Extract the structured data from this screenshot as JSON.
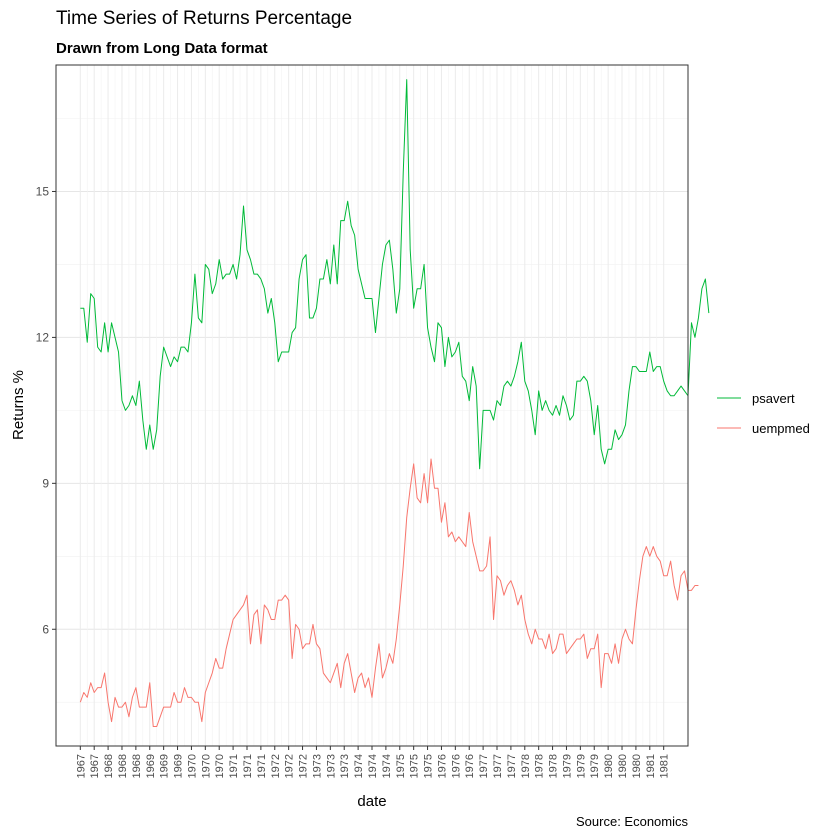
{
  "chart_data": {
    "type": "line",
    "title": "Time Series of Returns Percentage",
    "subtitle": "Drawn from Long Data format",
    "caption": "Source: Economics",
    "xlabel": "date",
    "ylabel": "Returns %",
    "ylim": [
      3.6,
      17.6
    ],
    "yticks": [
      6,
      9,
      12,
      15
    ],
    "x_tick_labels": [
      "1967",
      "1967",
      "1968",
      "1968",
      "1968",
      "1969",
      "1969",
      "1969",
      "1970",
      "1970",
      "1970",
      "1971",
      "1971",
      "1971",
      "1972",
      "1972",
      "1972",
      "1973",
      "1973",
      "1973",
      "1974",
      "1974",
      "1974",
      "1975",
      "1975",
      "1975",
      "1976",
      "1976",
      "1976",
      "1977",
      "1977",
      "1977",
      "1978",
      "1978",
      "1978",
      "1979",
      "1979",
      "1979",
      "1980",
      "1980",
      "1980",
      "1981",
      "1981"
    ],
    "x_tick_dates": [
      "1967-07",
      "1967-11",
      "1968-03",
      "1968-07",
      "1968-11",
      "1969-03",
      "1969-07",
      "1969-11",
      "1970-03",
      "1970-07",
      "1970-11",
      "1971-03",
      "1971-07",
      "1971-11",
      "1972-03",
      "1972-07",
      "1972-11",
      "1973-03",
      "1973-07",
      "1973-11",
      "1974-03",
      "1974-07",
      "1974-11",
      "1975-03",
      "1975-07",
      "1975-11",
      "1976-03",
      "1976-07",
      "1976-11",
      "1977-03",
      "1977-07",
      "1977-11",
      "1978-03",
      "1978-07",
      "1978-11",
      "1979-03",
      "1979-07",
      "1979-11",
      "1980-03",
      "1980-07",
      "1980-11",
      "1981-03",
      "1981-07"
    ],
    "x_range": [
      "1966-12",
      "1982-02"
    ],
    "grid": true,
    "legend": "right",
    "start_date": "1967-07",
    "series": [
      {
        "name": "psavert",
        "color": "#00BA38",
        "values": [
          12.6,
          12.6,
          11.9,
          12.9,
          12.8,
          11.8,
          11.7,
          12.3,
          11.7,
          12.3,
          12.0,
          11.7,
          10.7,
          10.5,
          10.6,
          10.8,
          10.6,
          11.1,
          10.3,
          9.7,
          10.2,
          9.7,
          10.1,
          11.2,
          11.8,
          11.6,
          11.4,
          11.6,
          11.5,
          11.8,
          11.8,
          11.7,
          12.3,
          13.3,
          12.4,
          12.3,
          13.5,
          13.4,
          12.9,
          13.1,
          13.6,
          13.2,
          13.3,
          13.3,
          13.5,
          13.2,
          13.7,
          14.7,
          13.8,
          13.6,
          13.3,
          13.3,
          13.2,
          13.0,
          12.5,
          12.8,
          12.3,
          11.5,
          11.7,
          11.7,
          11.7,
          12.1,
          12.2,
          13.2,
          13.6,
          13.7,
          12.4,
          12.4,
          12.6,
          13.2,
          13.2,
          13.6,
          13.1,
          13.9,
          13.1,
          14.4,
          14.4,
          14.8,
          14.3,
          14.1,
          13.4,
          13.1,
          12.8,
          12.8,
          12.8,
          12.1,
          12.8,
          13.5,
          13.9,
          14.0,
          13.4,
          12.5,
          13.0,
          15.4,
          17.3,
          13.8,
          12.6,
          13.0,
          13.0,
          13.5,
          12.2,
          11.8,
          11.5,
          12.3,
          12.2,
          11.4,
          12.0,
          11.6,
          11.7,
          11.9,
          11.2,
          11.1,
          10.7,
          11.4,
          11.0,
          9.3,
          10.5,
          10.5,
          10.5,
          10.3,
          10.7,
          10.6,
          11.0,
          11.1,
          11.0,
          11.2,
          11.5,
          11.9,
          11.1,
          10.9,
          10.5,
          10.0,
          10.9,
          10.5,
          10.7,
          10.5,
          10.4,
          10.6,
          10.4,
          10.8,
          10.6,
          10.3,
          10.4,
          11.1,
          11.1,
          11.2,
          11.1,
          10.7,
          10.0,
          10.6,
          9.7,
          9.4,
          9.7,
          9.7,
          10.1,
          9.9,
          10.0,
          10.2,
          10.9,
          11.4,
          11.4,
          11.3,
          11.3,
          11.3,
          11.7,
          11.3,
          11.4,
          11.4,
          11.1,
          10.9,
          10.8,
          10.8,
          10.9,
          11.0,
          10.9,
          10.8,
          12.3,
          12.0,
          12.4,
          13.0,
          13.2,
          12.5
        ]
      },
      {
        "name": "uempmed",
        "color": "#F8766D",
        "values": [
          4.5,
          4.7,
          4.6,
          4.9,
          4.7,
          4.8,
          4.8,
          5.1,
          4.5,
          4.1,
          4.6,
          4.4,
          4.4,
          4.5,
          4.2,
          4.6,
          4.8,
          4.4,
          4.4,
          4.4,
          4.9,
          4.0,
          4.0,
          4.2,
          4.4,
          4.4,
          4.4,
          4.7,
          4.5,
          4.5,
          4.8,
          4.6,
          4.6,
          4.5,
          4.5,
          4.1,
          4.7,
          4.9,
          5.1,
          5.4,
          5.2,
          5.2,
          5.6,
          5.9,
          6.2,
          6.3,
          6.4,
          6.5,
          6.7,
          5.7,
          6.3,
          6.4,
          5.7,
          6.5,
          6.4,
          6.2,
          6.2,
          6.6,
          6.6,
          6.7,
          6.6,
          5.4,
          6.1,
          6.0,
          5.6,
          5.7,
          5.7,
          6.1,
          5.7,
          5.6,
          5.1,
          5.0,
          4.9,
          5.1,
          5.3,
          4.8,
          5.3,
          5.5,
          5.1,
          4.7,
          5.0,
          5.1,
          4.8,
          5.0,
          4.6,
          5.2,
          5.7,
          5.0,
          5.2,
          5.5,
          5.3,
          5.8,
          6.5,
          7.3,
          8.3,
          8.9,
          9.4,
          8.7,
          8.6,
          9.2,
          8.6,
          9.5,
          8.9,
          8.9,
          8.2,
          8.6,
          7.9,
          8.0,
          7.8,
          7.9,
          7.8,
          7.7,
          8.4,
          7.8,
          7.5,
          7.2,
          7.2,
          7.3,
          7.9,
          6.2,
          7.1,
          7.0,
          6.7,
          6.9,
          7.0,
          6.8,
          6.5,
          6.7,
          6.2,
          5.9,
          5.7,
          6.0,
          5.8,
          5.8,
          5.6,
          5.9,
          5.5,
          5.6,
          5.9,
          5.9,
          5.5,
          5.6,
          5.7,
          5.8,
          5.8,
          5.9,
          5.4,
          5.6,
          5.6,
          5.9,
          4.8,
          5.5,
          5.5,
          5.3,
          5.7,
          5.3,
          5.8,
          6.0,
          5.8,
          5.7,
          6.4,
          7.0,
          7.5,
          7.7,
          7.5,
          7.7,
          7.5,
          7.4,
          7.1,
          7.1,
          7.4,
          6.9,
          6.6,
          7.1,
          7.2,
          6.8,
          6.8,
          6.9,
          6.9
        ]
      }
    ]
  }
}
